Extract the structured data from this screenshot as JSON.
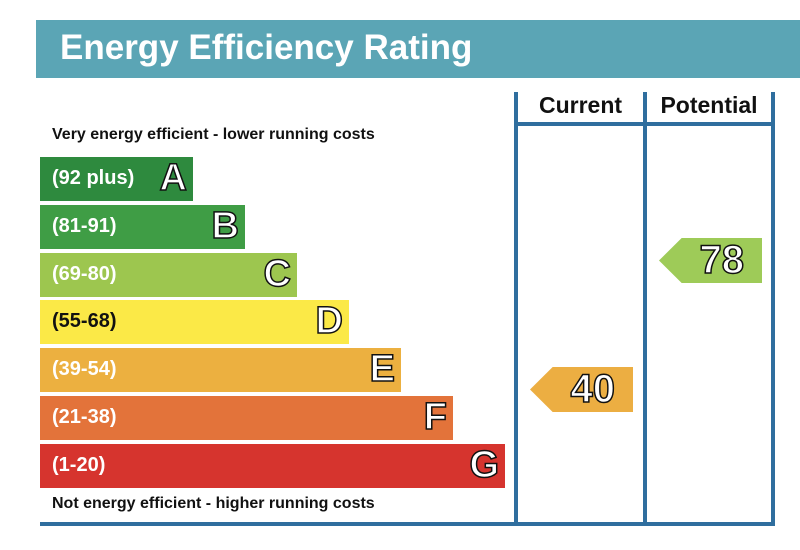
{
  "chart_data": {
    "type": "energy-rating",
    "title": "Energy Efficiency Rating",
    "columns": [
      "Current",
      "Potential"
    ],
    "top_note": "Very energy efficient - lower running costs",
    "bottom_note": "Not energy efficient - higher running costs",
    "bands": [
      {
        "letter": "A",
        "range": "(92 plus)",
        "color": "#2e8a3e"
      },
      {
        "letter": "B",
        "range": "(81-91)",
        "color": "#3f9d45"
      },
      {
        "letter": "C",
        "range": "(69-80)",
        "color": "#9dc64f"
      },
      {
        "letter": "D",
        "range": "(55-68)",
        "color": "#fbe947"
      },
      {
        "letter": "E",
        "range": "(39-54)",
        "color": "#ecb040"
      },
      {
        "letter": "F",
        "range": "(21-38)",
        "color": "#e3733a"
      },
      {
        "letter": "G",
        "range": "(1-20)",
        "color": "#d6342e"
      }
    ],
    "current": {
      "value": "40",
      "band": "E",
      "color": "#ecae42"
    },
    "potential": {
      "value": "78",
      "band": "C",
      "color": "#9ecb58"
    }
  }
}
